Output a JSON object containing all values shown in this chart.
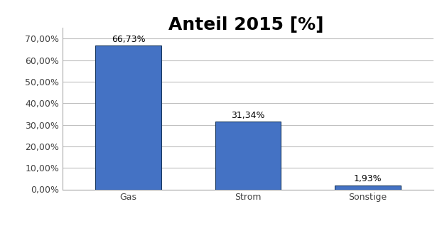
{
  "title": "Anteil 2015 [%]",
  "categories": [
    "Gas",
    "Strom",
    "Sonstige"
  ],
  "values": [
    66.73,
    31.34,
    1.93
  ],
  "bar_color": "#4472C4",
  "bar_edge_color": "#17375E",
  "ylim_max": 0.75,
  "yticks": [
    0.0,
    0.1,
    0.2,
    0.3,
    0.4,
    0.5,
    0.6,
    0.7
  ],
  "ytick_labels": [
    "0,00%",
    "10,00%",
    "20,00%",
    "30,00%",
    "40,00%",
    "50,00%",
    "60,00%",
    "70,00%"
  ],
  "data_labels": [
    "66,73%",
    "31,34%",
    "1,93%"
  ],
  "legend_label": "Anteil 2015 [%]",
  "background_color": "#FFFFFF",
  "plot_bg_color": "#FFFFFF",
  "grid_color": "#C0C0C0",
  "title_fontsize": 18,
  "label_fontsize": 9,
  "tick_fontsize": 9,
  "legend_fontsize": 9,
  "bar_width": 0.55
}
